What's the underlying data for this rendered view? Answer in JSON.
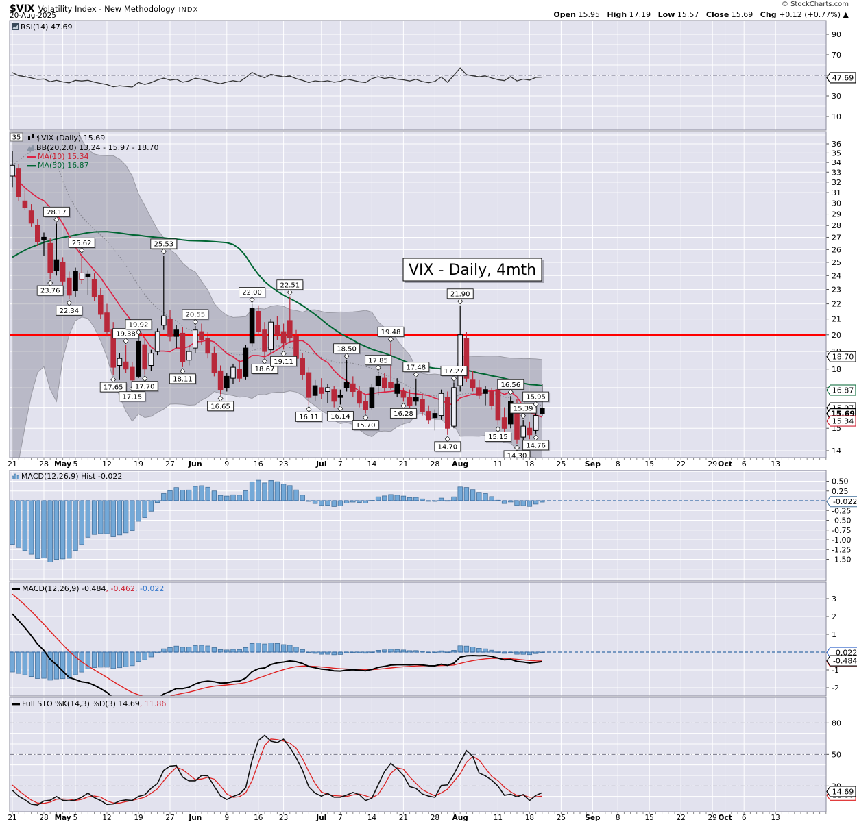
{
  "header": {
    "symbol": "$VIX",
    "title": "Volatility Index - New Methodology",
    "exchange": "INDX",
    "date": "20-Aug-2025",
    "copyright": "© StockCharts.com",
    "quote": {
      "open_label": "Open",
      "open": "15.95",
      "high_label": "High",
      "high": "17.19",
      "low_label": "Low",
      "low": "15.57",
      "close_label": "Close",
      "close": "15.69",
      "chg_label": "Chg",
      "chg": "+0.12 (+0.77%)",
      "arrow": "▲"
    }
  },
  "panels": {
    "rsi": {
      "legend": "RSI(14) 47.69",
      "ticks": [
        90,
        70,
        50,
        30,
        10
      ],
      "value_box": {
        "t": "47.69",
        "v": 47.69,
        "c": "#000000"
      }
    },
    "price": {
      "legend_symbol": "$VIX (Daily) 15.69",
      "legend_bb": "BB(20,2.0) 13.24 - 15.97 - 18.70",
      "legend_ma10": "MA(10) 15.34",
      "legend_ma50": "MA(50) 16.87",
      "left_box": "35",
      "title_box": "VIX - Daily, 4mth",
      "y_min": 14,
      "y_max": 36,
      "hline": 20,
      "axis_boxes": [
        {
          "t": "18.70",
          "v": 18.7,
          "c": "#000000",
          "bold": false
        },
        {
          "t": "16.87",
          "v": 16.87,
          "c": "#006633",
          "bold": false
        },
        {
          "t": "15.97",
          "v": 15.97,
          "c": "#000000",
          "bold": false
        },
        {
          "t": "15.69",
          "v": 15.69,
          "c": "#000000",
          "bold": true
        },
        {
          "t": "15.34",
          "v": 15.34,
          "c": "#cc2233",
          "bold": false
        }
      ]
    },
    "macd_hist": {
      "legend": "MACD(12,26,9) Hist -0.022",
      "ticks": [
        0.5,
        0.25,
        -0.25,
        -0.5,
        -0.75,
        -1.0,
        -1.25,
        -1.5
      ],
      "value_box": {
        "t": "-0.022",
        "v": -0.022,
        "c": "#44709b"
      }
    },
    "macd": {
      "legend_main": "MACD(12,26,9) -0.484",
      "legend_signal": ", -0.462",
      "legend_hist": ", -0.022",
      "ticks": [
        3,
        2,
        1,
        -1,
        -2
      ],
      "value_boxes": [
        {
          "t": "-0.462",
          "v": -0.53,
          "c": "#dd2222"
        },
        {
          "t": "-0.022",
          "v": -0.022,
          "c": "#3366cc"
        },
        {
          "t": "-0.484",
          "v": -0.484,
          "c": "#000000"
        }
      ]
    },
    "sto": {
      "legend_main": "Full STO %K(14,3) %D(3) 14.69",
      "legend_d": ", 11.86",
      "ticks": [
        80,
        50,
        20
      ],
      "value_boxes": [
        {
          "t": "11.86",
          "v": 11.2,
          "c": "#dd2222"
        },
        {
          "t": "14.69",
          "v": 14.69,
          "c": "#000000"
        }
      ]
    }
  },
  "colors": {
    "panel_bg": "#e2e2ee",
    "grid": "#ffffff",
    "panel_border": "#888899",
    "hline_red": "#ff0000",
    "candle_red": "#b8283a",
    "candle_black": "#000000",
    "hollow_fill": "#eeeef6",
    "ma10": "#dd2244",
    "ma50": "#006633",
    "bb_fill": "rgba(125,125,140,0.40)",
    "bb_edge": "#9a9aa4",
    "bb_mid": "#85858f",
    "hist_fill": "#74a9d8",
    "hist_stroke": "#44709b",
    "zero_line": "#3a6ea8",
    "macd_line": "#000000",
    "signal_line": "#e02222",
    "sto_k": "#111111",
    "sto_d": "#dd2222",
    "rsi_line": "#333333",
    "dashdot": "#777788",
    "tick": "#555555"
  },
  "chart_data": {
    "type": "candlestick+indicators",
    "symbol": "$VIX",
    "timeframe": "Daily, 4mth",
    "ohlc_today": {
      "open": 15.95,
      "high": 17.19,
      "low": 15.57,
      "close": 15.69,
      "chg": "+0.12 (+0.77%)"
    },
    "indicator_values": {
      "rsi14": 47.69,
      "bb": [
        13.24,
        15.97,
        18.7
      ],
      "ma10": 15.34,
      "ma50": 16.87,
      "macd": -0.484,
      "signal": -0.462,
      "hist": -0.022,
      "stoK": 14.69,
      "stoD": 11.86
    },
    "x_labels": [
      {
        "t": "21",
        "i": 0,
        "b": 0
      },
      {
        "t": "28",
        "i": 5,
        "b": 0
      },
      {
        "t": "May",
        "i": 8,
        "b": 1
      },
      {
        "t": "5",
        "i": 10,
        "b": 0
      },
      {
        "t": "12",
        "i": 15,
        "b": 0
      },
      {
        "t": "19",
        "i": 20,
        "b": 0
      },
      {
        "t": "27",
        "i": 25,
        "b": 0
      },
      {
        "t": "Jun",
        "i": 29,
        "b": 1
      },
      {
        "t": "9",
        "i": 34,
        "b": 0
      },
      {
        "t": "16",
        "i": 39,
        "b": 0
      },
      {
        "t": "23",
        "i": 43,
        "b": 0
      },
      {
        "t": "Jul",
        "i": 49,
        "b": 1
      },
      {
        "t": "7",
        "i": 52,
        "b": 0
      },
      {
        "t": "14",
        "i": 57,
        "b": 0
      },
      {
        "t": "21",
        "i": 62,
        "b": 0
      },
      {
        "t": "28",
        "i": 67,
        "b": 0
      },
      {
        "t": "Aug",
        "i": 71,
        "b": 1
      },
      {
        "t": "11",
        "i": 77,
        "b": 0
      },
      {
        "t": "18",
        "i": 82,
        "b": 0
      },
      {
        "t": "25",
        "i": 87,
        "b": 0
      },
      {
        "t": "Sep",
        "i": 92,
        "b": 1
      },
      {
        "t": "8",
        "i": 96,
        "b": 0
      },
      {
        "t": "15",
        "i": 101,
        "b": 0
      },
      {
        "t": "22",
        "i": 106,
        "b": 0
      },
      {
        "t": "29",
        "i": 111,
        "b": 0
      },
      {
        "t": "Oct",
        "i": 113,
        "b": 1
      },
      {
        "t": "6",
        "i": 116,
        "b": 0
      },
      {
        "t": "13",
        "i": 121,
        "b": 0
      }
    ],
    "candles": [
      [
        32.6,
        35.2,
        31.5,
        33.7,
        "w"
      ],
      [
        33.4,
        33.8,
        30.2,
        30.6,
        "r"
      ],
      [
        30.2,
        31.3,
        29.4,
        29.6,
        "r"
      ],
      [
        29.3,
        29.9,
        27.9,
        28.2,
        "r"
      ],
      [
        28.0,
        28.6,
        26.3,
        26.6,
        "r"
      ],
      [
        26.8,
        27.4,
        25.5,
        27.0,
        "k"
      ],
      [
        26.5,
        26.9,
        23.76,
        24.2,
        "r"
      ],
      [
        24.4,
        28.17,
        24.0,
        25.2,
        "k"
      ],
      [
        25.0,
        25.4,
        23.3,
        23.6,
        "r"
      ],
      [
        23.8,
        24.3,
        22.34,
        22.6,
        "r"
      ],
      [
        22.9,
        24.6,
        22.5,
        24.3,
        "k"
      ],
      [
        24.2,
        25.62,
        23.4,
        23.7,
        "rw"
      ],
      [
        23.9,
        24.4,
        22.6,
        24.1,
        "k"
      ],
      [
        23.7,
        24.2,
        22.2,
        22.5,
        "r"
      ],
      [
        22.6,
        23.1,
        21.0,
        21.3,
        "r"
      ],
      [
        21.4,
        22.0,
        19.9,
        20.2,
        "r"
      ],
      [
        20.3,
        20.8,
        17.65,
        18.1,
        "r"
      ],
      [
        18.2,
        18.9,
        17.4,
        18.6,
        "w"
      ],
      [
        18.4,
        19.38,
        17.8,
        18.0,
        "r"
      ],
      [
        18.1,
        18.4,
        17.15,
        17.4,
        "r"
      ],
      [
        17.6,
        19.92,
        17.5,
        19.6,
        "k"
      ],
      [
        19.4,
        19.8,
        17.7,
        18.0,
        "r"
      ],
      [
        18.2,
        19.1,
        17.9,
        18.9,
        "w"
      ],
      [
        19.0,
        20.4,
        18.8,
        20.2,
        "w"
      ],
      [
        20.6,
        25.53,
        20.3,
        21.2,
        "w"
      ],
      [
        21.0,
        21.6,
        19.6,
        19.9,
        "r"
      ],
      [
        19.9,
        20.6,
        19.2,
        20.3,
        "k"
      ],
      [
        20.1,
        20.5,
        18.11,
        18.4,
        "r"
      ],
      [
        18.5,
        19.3,
        18.2,
        19.0,
        "w"
      ],
      [
        19.2,
        20.55,
        18.9,
        20.3,
        "w"
      ],
      [
        20.2,
        20.7,
        19.4,
        19.7,
        "r"
      ],
      [
        19.8,
        20.2,
        18.6,
        18.9,
        "r"
      ],
      [
        18.9,
        19.3,
        17.6,
        17.8,
        "r"
      ],
      [
        17.9,
        18.2,
        16.65,
        16.9,
        "r"
      ],
      [
        17.0,
        17.8,
        16.8,
        17.6,
        "k"
      ],
      [
        17.5,
        18.3,
        17.2,
        18.1,
        "w"
      ],
      [
        18.0,
        18.5,
        17.3,
        17.5,
        "r"
      ],
      [
        17.6,
        19.4,
        17.4,
        19.2,
        "k"
      ],
      [
        19.5,
        22.0,
        19.3,
        21.7,
        "k"
      ],
      [
        21.5,
        21.9,
        19.9,
        20.2,
        "r"
      ],
      [
        20.3,
        20.8,
        18.67,
        19.0,
        "r"
      ],
      [
        19.1,
        21.0,
        18.9,
        20.8,
        "w"
      ],
      [
        20.6,
        21.2,
        19.7,
        20.0,
        "r"
      ],
      [
        20.2,
        20.7,
        19.11,
        19.5,
        "r"
      ],
      [
        20.9,
        22.51,
        19.5,
        19.8,
        "r"
      ],
      [
        19.9,
        20.3,
        18.3,
        18.6,
        "r"
      ],
      [
        18.6,
        18.9,
        17.4,
        17.7,
        "r"
      ],
      [
        17.8,
        18.1,
        16.11,
        16.5,
        "r"
      ],
      [
        16.6,
        17.4,
        16.3,
        17.1,
        "k"
      ],
      [
        17.0,
        17.5,
        16.4,
        16.7,
        "r"
      ],
      [
        16.8,
        17.2,
        16.2,
        17.0,
        "w"
      ],
      [
        16.9,
        17.1,
        16.0,
        16.3,
        "r"
      ],
      [
        16.5,
        16.9,
        16.14,
        16.6,
        "k"
      ],
      [
        17.0,
        18.5,
        16.8,
        17.3,
        "k"
      ],
      [
        17.2,
        17.6,
        16.5,
        16.8,
        "r"
      ],
      [
        16.8,
        17.1,
        16.0,
        16.2,
        "r"
      ],
      [
        16.3,
        16.6,
        15.7,
        15.9,
        "r"
      ],
      [
        16.0,
        17.2,
        15.9,
        17.0,
        "k"
      ],
      [
        17.1,
        17.85,
        16.6,
        17.6,
        "k"
      ],
      [
        17.5,
        17.8,
        16.8,
        17.0,
        "r"
      ],
      [
        17.0,
        19.48,
        16.9,
        17.3,
        "r"
      ],
      [
        17.2,
        17.5,
        16.5,
        16.7,
        "k"
      ],
      [
        16.8,
        17.0,
        16.28,
        16.5,
        "r"
      ],
      [
        16.5,
        16.9,
        15.9,
        16.1,
        "r"
      ],
      [
        16.3,
        17.48,
        16.1,
        16.5,
        "k"
      ],
      [
        16.4,
        16.7,
        15.6,
        15.8,
        "r"
      ],
      [
        15.8,
        16.1,
        15.2,
        15.4,
        "r"
      ],
      [
        15.5,
        15.9,
        14.9,
        15.7,
        "k"
      ],
      [
        15.6,
        16.9,
        15.4,
        16.7,
        "w"
      ],
      [
        16.5,
        16.8,
        14.7,
        15.0,
        "r"
      ],
      [
        15.1,
        17.27,
        15.0,
        17.0,
        "w"
      ],
      [
        17.1,
        21.9,
        16.8,
        20.0,
        "w"
      ],
      [
        19.8,
        20.2,
        17.3,
        17.5,
        "r"
      ],
      [
        17.4,
        17.9,
        16.8,
        17.0,
        "r"
      ],
      [
        17.0,
        17.4,
        16.4,
        16.6,
        "r"
      ],
      [
        16.7,
        17.1,
        16.1,
        16.9,
        "k"
      ],
      [
        16.8,
        17.0,
        15.9,
        16.1,
        "r"
      ],
      [
        16.9,
        17.1,
        15.15,
        15.4,
        "r"
      ],
      [
        15.5,
        16.0,
        14.8,
        15.0,
        "r"
      ],
      [
        15.2,
        16.56,
        15.0,
        16.3,
        "k"
      ],
      [
        16.2,
        16.4,
        14.3,
        14.5,
        "r"
      ],
      [
        14.6,
        15.39,
        14.4,
        15.1,
        "w"
      ],
      [
        15.0,
        15.3,
        14.5,
        14.7,
        "r"
      ],
      [
        14.9,
        15.95,
        14.76,
        15.6,
        "w"
      ],
      [
        15.95,
        17.19,
        15.57,
        15.69,
        "k"
      ]
    ],
    "annotations": [
      {
        "i": 6,
        "t": "23.76",
        "s": "lo"
      },
      {
        "i": 7,
        "t": "28.17",
        "s": "hi"
      },
      {
        "i": 9,
        "t": "22.34",
        "s": "lo"
      },
      {
        "i": 11,
        "t": "25.62",
        "s": "hi"
      },
      {
        "i": 16,
        "t": "17.65",
        "s": "lo"
      },
      {
        "i": 18,
        "t": "19.38",
        "s": "hi"
      },
      {
        "i": 19,
        "t": "17.15",
        "s": "lo"
      },
      {
        "i": 20,
        "t": "19.92",
        "s": "hi"
      },
      {
        "i": 21,
        "t": "17.70",
        "s": "lo"
      },
      {
        "i": 24,
        "t": "25.53",
        "s": "hi"
      },
      {
        "i": 27,
        "t": "18.11",
        "s": "lo"
      },
      {
        "i": 29,
        "t": "20.55",
        "s": "hi"
      },
      {
        "i": 33,
        "t": "16.65",
        "s": "lo"
      },
      {
        "i": 38,
        "t": "22.00",
        "s": "hi"
      },
      {
        "i": 40,
        "t": "18.67",
        "s": "lo"
      },
      {
        "i": 43,
        "t": "19.11",
        "s": "lo"
      },
      {
        "i": 44,
        "t": "22.51",
        "s": "hi"
      },
      {
        "i": 47,
        "t": "16.11",
        "s": "lo"
      },
      {
        "i": 52,
        "t": "16.14",
        "s": "lo"
      },
      {
        "i": 53,
        "t": "18.50",
        "s": "hi"
      },
      {
        "i": 56,
        "t": "15.70",
        "s": "lo"
      },
      {
        "i": 58,
        "t": "17.85",
        "s": "hi"
      },
      {
        "i": 60,
        "t": "19.48",
        "s": "hi"
      },
      {
        "i": 62,
        "t": "16.28",
        "s": "lo"
      },
      {
        "i": 64,
        "t": "17.48",
        "s": "hi"
      },
      {
        "i": 69,
        "t": "14.70",
        "s": "lo"
      },
      {
        "i": 70,
        "t": "17.27",
        "s": "hi"
      },
      {
        "i": 71,
        "t": "21.90",
        "s": "hi"
      },
      {
        "i": 77,
        "t": "15.15",
        "s": "lo"
      },
      {
        "i": 79,
        "t": "16.56",
        "s": "hi"
      },
      {
        "i": 80,
        "t": "14.30",
        "s": "lo"
      },
      {
        "i": 81,
        "t": "15.39",
        "s": "hi"
      },
      {
        "i": 83,
        "t": "15.95",
        "s": "hi"
      },
      {
        "i": 83,
        "t": "14.76",
        "s": "lo"
      }
    ],
    "indicator_seed": [
      16,
      16,
      16,
      16.5,
      17,
      17,
      17.5,
      17.5,
      18,
      18,
      18.5,
      19,
      19,
      19.5,
      20,
      20,
      21,
      21.5,
      22,
      21.5,
      21,
      21.5,
      22,
      22.5,
      23,
      23,
      22.5,
      22,
      21.5,
      21,
      20.5,
      20,
      19.5,
      19,
      20,
      25,
      35,
      48,
      60,
      52,
      45,
      40,
      36,
      33,
      31,
      30,
      30.5,
      31,
      32,
      33
    ]
  }
}
